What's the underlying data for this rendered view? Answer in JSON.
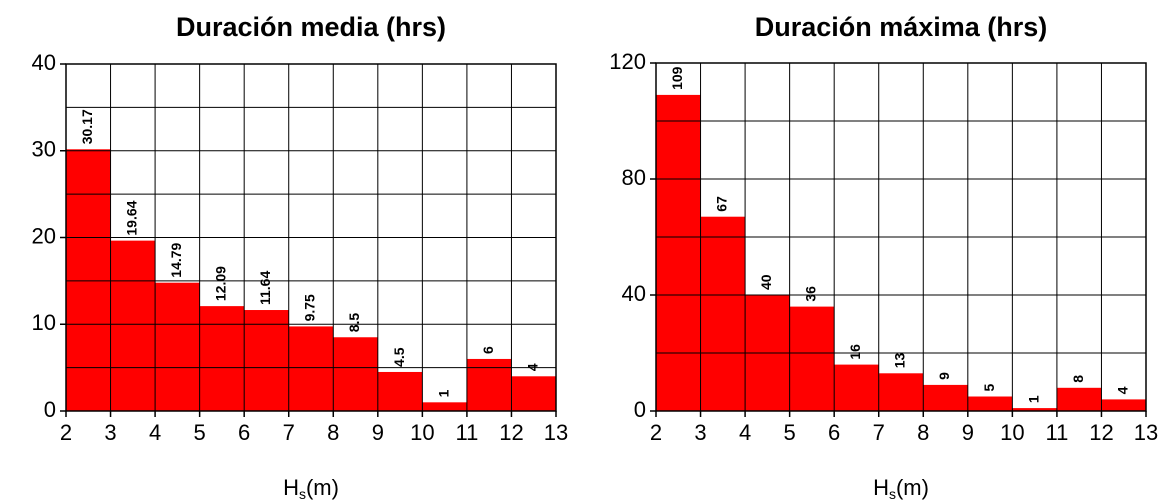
{
  "chart_data": [
    {
      "type": "histogram",
      "title": "Duración media (hrs)",
      "xlabel": [
        "H",
        "s",
        "(m)"
      ],
      "bins": [
        2,
        3,
        4,
        5,
        6,
        7,
        8,
        9,
        10,
        11,
        12,
        13
      ],
      "values": [
        30.17,
        19.64,
        14.79,
        12.09,
        11.64,
        9.75,
        8.5,
        4.5,
        1,
        6,
        4
      ],
      "color": "#ff0000",
      "xlim": [
        2,
        13
      ],
      "xticks": [
        2,
        3,
        4,
        5,
        6,
        7,
        8,
        9,
        10,
        11,
        12,
        13
      ],
      "ylim": [
        0,
        40
      ],
      "yticks": [
        0,
        10,
        20,
        30,
        40
      ],
      "ygrid_minor": [
        5,
        15,
        25,
        35
      ],
      "grid": true
    },
    {
      "type": "histogram",
      "title": "Duración máxima (hrs)",
      "xlabel": [
        "H",
        "s",
        "(m)"
      ],
      "bins": [
        2,
        3,
        4,
        5,
        6,
        7,
        8,
        9,
        10,
        11,
        12,
        13
      ],
      "values": [
        109,
        67,
        40,
        36,
        16,
        13,
        9,
        5,
        1,
        8,
        4
      ],
      "color": "#ff0000",
      "xlim": [
        2,
        13
      ],
      "xticks": [
        2,
        3,
        4,
        5,
        6,
        7,
        8,
        9,
        10,
        11,
        12,
        13
      ],
      "ylim": [
        0,
        120
      ],
      "yticks": [
        0,
        40,
        80,
        120
      ],
      "ygrid_minor": [
        20,
        60,
        100
      ],
      "grid": true
    }
  ]
}
